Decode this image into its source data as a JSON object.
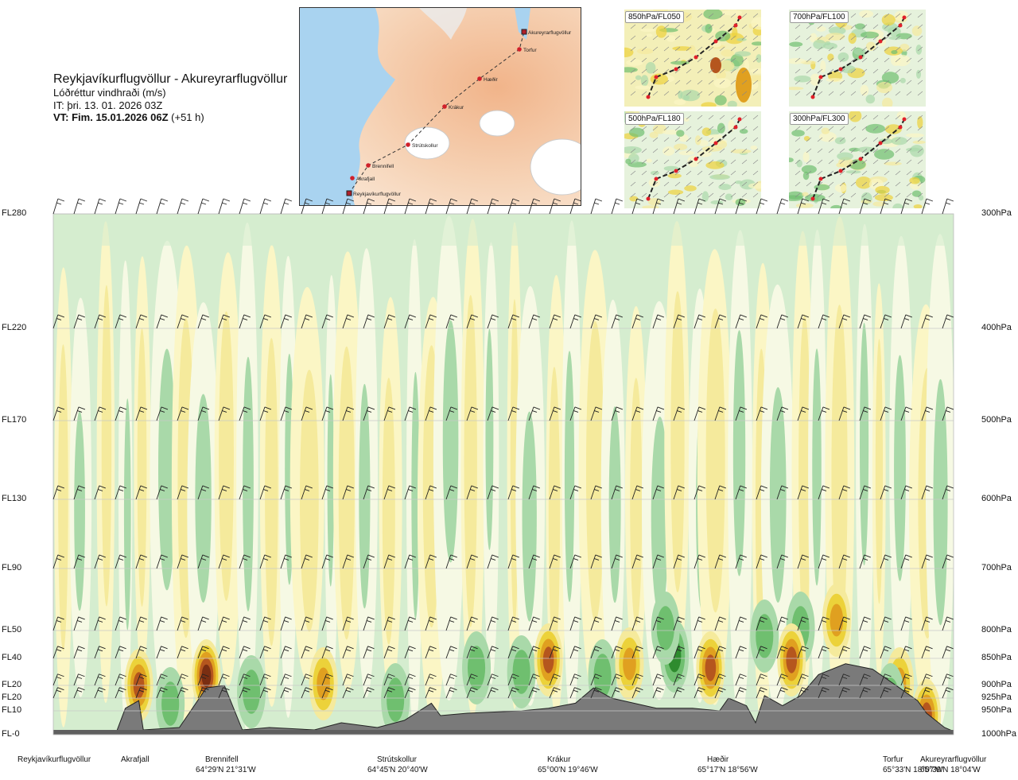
{
  "header": {
    "title": "Reykjavíkurflugvöllur - Akureyrarflugvöllur",
    "subtitle": "Lóðréttur vindhraði (m/s)",
    "issue_time": "IT: þri. 13. 01. 2026 03Z",
    "valid_time_bold": "VT: Fim. 15.01.2026 06Z",
    "valid_time_offset": "(+51 h)"
  },
  "map": {
    "stations": [
      {
        "name": "Akureyrarflugvöllur"
      },
      {
        "name": "Torfur"
      },
      {
        "name": "Hæðir"
      },
      {
        "name": "Krákur"
      },
      {
        "name": "Strútskollur"
      },
      {
        "name": "Brennifell"
      },
      {
        "name": "Akrafjall"
      },
      {
        "name": "Reykjavíkurflugvöllur"
      }
    ]
  },
  "thumbnails": [
    {
      "label": "850hPa/FL050"
    },
    {
      "label": "700hPa/FL100"
    },
    {
      "label": "500hPa/FL180"
    },
    {
      "label": "300hPa/FL300"
    }
  ],
  "chart_data": {
    "type": "heatmap",
    "title": "Reykjavíkurflugvöllur - Akureyrarflugvöllur",
    "variable": "Lóðréttur vindhraði (m/s)",
    "left_axis_labels": [
      "FL280",
      "FL220",
      "FL170",
      "FL130",
      "FL90",
      "FL50",
      "FL40",
      "FL20",
      "FL20",
      "FL10",
      "FL-0"
    ],
    "right_axis_labels": [
      "300hPa",
      "400hPa",
      "500hPa",
      "600hPa",
      "700hPa",
      "800hPa",
      "850hPa",
      "900hPa",
      "925hPa",
      "950hPa",
      "1000hPa"
    ],
    "pressure_levels_hpa": [
      300,
      400,
      500,
      600,
      700,
      800,
      850,
      900,
      925,
      950,
      1000
    ],
    "x_locations": [
      {
        "name": "Reykjavíkurflugvöllur",
        "coord": "",
        "pos": 0.0
      },
      {
        "name": "Akrafjall",
        "coord": "",
        "pos": 0.09
      },
      {
        "name": "Brennifell",
        "coord": "64°29'N 21°31'W",
        "pos": 0.17
      },
      {
        "name": "Strútskollur",
        "coord": "64°45'N 20°40'W",
        "pos": 0.38
      },
      {
        "name": "Krákur",
        "coord": "65°00'N 19°46'W",
        "pos": 0.57
      },
      {
        "name": "Hæðir",
        "coord": "65°17'N 18°56'W",
        "pos": 0.76
      },
      {
        "name": "Torfur",
        "coord": "65°33'N 18°07'W",
        "pos": 0.95
      },
      {
        "name": "Akureyrarflugvöllur",
        "coord": "65°39'N 18°04'W",
        "pos": 1.0
      }
    ],
    "colors": {
      "strong_down": "#2e8b2e",
      "down": "#6fbf6f",
      "weak_down": "#a9d9a9",
      "near_zero_down": "#d5edcf",
      "near_zero": "#f6f9e4",
      "near_zero_up": "#fbf6c5",
      "weak_up": "#f5ea9c",
      "up": "#ecd23a",
      "strong_up": "#e0a020",
      "very_strong_up": "#b5561e",
      "extreme_up": "#7a2e12",
      "terrain": "#7a7a7a"
    },
    "terrain_profile_pressure_hpa": [
      {
        "pos": 0.0,
        "p": 995
      },
      {
        "pos": 0.07,
        "p": 995
      },
      {
        "pos": 0.08,
        "p": 945
      },
      {
        "pos": 0.095,
        "p": 930
      },
      {
        "pos": 0.1,
        "p": 990
      },
      {
        "pos": 0.14,
        "p": 985
      },
      {
        "pos": 0.17,
        "p": 905
      },
      {
        "pos": 0.19,
        "p": 900
      },
      {
        "pos": 0.21,
        "p": 990
      },
      {
        "pos": 0.24,
        "p": 985
      },
      {
        "pos": 0.29,
        "p": 990
      },
      {
        "pos": 0.32,
        "p": 975
      },
      {
        "pos": 0.36,
        "p": 985
      },
      {
        "pos": 0.39,
        "p": 970
      },
      {
        "pos": 0.42,
        "p": 935
      },
      {
        "pos": 0.43,
        "p": 960
      },
      {
        "pos": 0.46,
        "p": 955
      },
      {
        "pos": 0.52,
        "p": 950
      },
      {
        "pos": 0.55,
        "p": 945
      },
      {
        "pos": 0.58,
        "p": 935
      },
      {
        "pos": 0.6,
        "p": 905
      },
      {
        "pos": 0.62,
        "p": 925
      },
      {
        "pos": 0.67,
        "p": 945
      },
      {
        "pos": 0.71,
        "p": 945
      },
      {
        "pos": 0.74,
        "p": 950
      },
      {
        "pos": 0.75,
        "p": 925
      },
      {
        "pos": 0.77,
        "p": 940
      },
      {
        "pos": 0.78,
        "p": 975
      },
      {
        "pos": 0.79,
        "p": 920
      },
      {
        "pos": 0.81,
        "p": 940
      },
      {
        "pos": 0.83,
        "p": 920
      },
      {
        "pos": 0.85,
        "p": 880
      },
      {
        "pos": 0.88,
        "p": 860
      },
      {
        "pos": 0.91,
        "p": 870
      },
      {
        "pos": 0.94,
        "p": 905
      },
      {
        "pos": 0.96,
        "p": 930
      },
      {
        "pos": 0.97,
        "p": 955
      },
      {
        "pos": 0.99,
        "p": 985
      },
      {
        "pos": 1.0,
        "p": 993
      }
    ]
  }
}
